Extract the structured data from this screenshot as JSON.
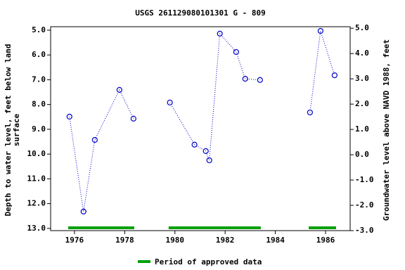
{
  "chart_data": {
    "type": "line",
    "title": "USGS 261129080101301 G  - 809",
    "ylabel": [
      "Depth to water level, feet below land",
      "surface"
    ],
    "y2label": "Groundwater level above NAVD 1988, feet",
    "x": [
      1975.8,
      1976.36,
      1976.81,
      1977.79,
      1978.35,
      null,
      1979.8,
      1980.78,
      1981.23,
      1981.37,
      1981.79,
      1982.44,
      1982.8,
      1983.39,
      null,
      1985.38,
      1985.8,
      1986.36
    ],
    "series": [
      {
        "color": "#0000c8",
        "values": [
          8.49,
          12.32,
          9.43,
          7.41,
          8.57,
          null,
          7.92,
          9.62,
          9.88,
          10.25,
          5.14,
          5.88,
          6.96,
          7.01,
          null,
          8.32,
          5.03,
          6.82
        ]
      }
    ],
    "xlim": [
      1975.05,
      1986.98
    ],
    "xticks": [
      1976,
      1978,
      1980,
      1982,
      1984,
      1986
    ],
    "ylim": [
      13.09,
      4.86
    ],
    "yticks": [
      {
        "value": 5,
        "label": "5.0"
      },
      {
        "value": 6,
        "label": "6.0"
      },
      {
        "value": 7,
        "label": "7.0"
      },
      {
        "value": 8,
        "label": "8.0"
      },
      {
        "value": 9,
        "label": "9.0"
      },
      {
        "value": 10,
        "label": "10.0"
      },
      {
        "value": 11,
        "label": "11.0"
      },
      {
        "value": 12,
        "label": "12.0"
      },
      {
        "value": 13,
        "label": "13.0"
      }
    ],
    "y2lim": [
      -3.0,
      5.06
    ],
    "y2ticks": [
      {
        "value": 5,
        "label": "5.0"
      },
      {
        "value": 4,
        "label": "4.0"
      },
      {
        "value": 3,
        "label": "3.0"
      },
      {
        "value": 2,
        "label": "2.0"
      },
      {
        "value": 1,
        "label": "1.0"
      },
      {
        "value": 0,
        "label": "0.0"
      },
      {
        "value": -1,
        "label": "-1.0"
      },
      {
        "value": -2,
        "label": "-2.0"
      },
      {
        "value": -3,
        "label": "-3.0"
      }
    ],
    "approved_periods": [
      [
        1975.75,
        1978.38
      ],
      [
        1979.75,
        1983.42
      ],
      [
        1985.33,
        1986.42
      ]
    ],
    "approved_color": "#00a000",
    "legend": "Period of approved data"
  }
}
